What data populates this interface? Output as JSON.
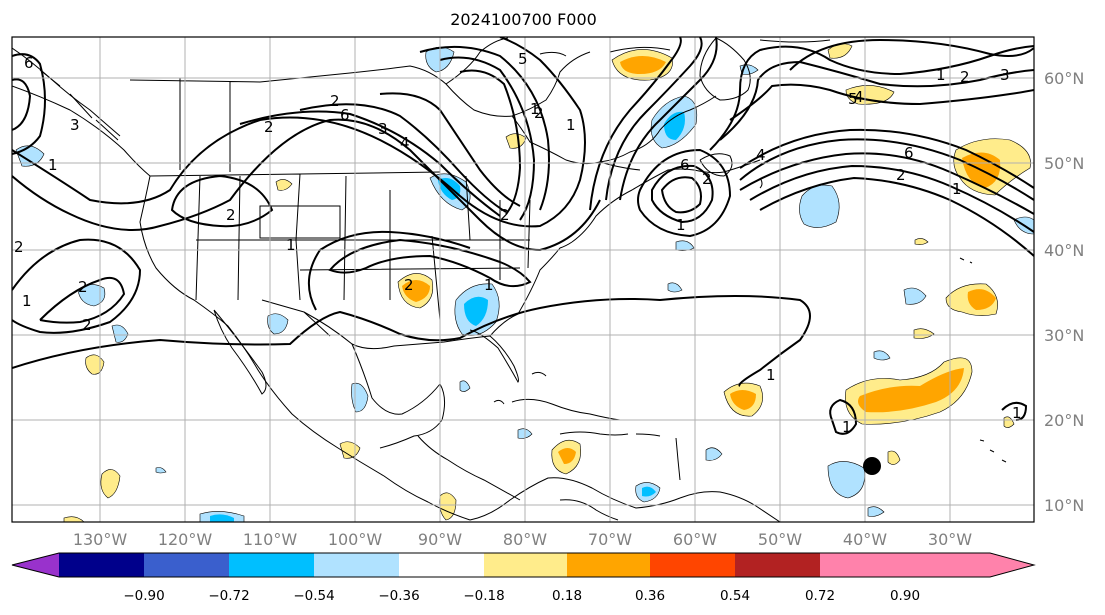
{
  "title": "2024100700 F000",
  "map": {
    "lon_ticks": [
      "130°W",
      "120°W",
      "110°W",
      "100°W",
      "90°W",
      "80°W",
      "70°W",
      "60°W",
      "50°W",
      "40°W",
      "30°W"
    ],
    "lat_ticks": [
      "10°N",
      "20°N",
      "30°N",
      "40°N",
      "50°N",
      "60°N"
    ],
    "contour_labels": [
      "6",
      "2",
      "1",
      "2",
      "1",
      "2",
      "2",
      "1",
      "6",
      "2",
      "1",
      "2",
      "3",
      "4",
      "5",
      "1",
      "2",
      "1",
      "1",
      "2",
      "1",
      "2",
      "6",
      "4",
      "1",
      "2",
      "3",
      "6",
      "2",
      "1",
      "1",
      "1",
      "2",
      "5",
      "4",
      "3"
    ]
  },
  "colorbar": {
    "tick_labels": [
      "−0.90",
      "−0.72",
      "−0.54",
      "−0.36",
      "−0.18",
      "0.18",
      "0.36",
      "0.54",
      "0.72",
      "0.90"
    ],
    "colors": [
      "#9932CC",
      "#00008B",
      "#3A5FCD",
      "#00BFFF",
      "#B0E2FF",
      "#FFFFFF",
      "#FFEC8B",
      "#FFA500",
      "#FF4500",
      "#B22222",
      "#FF82AB"
    ]
  },
  "marker": {
    "label": "storm-center",
    "color": "#000000"
  }
}
